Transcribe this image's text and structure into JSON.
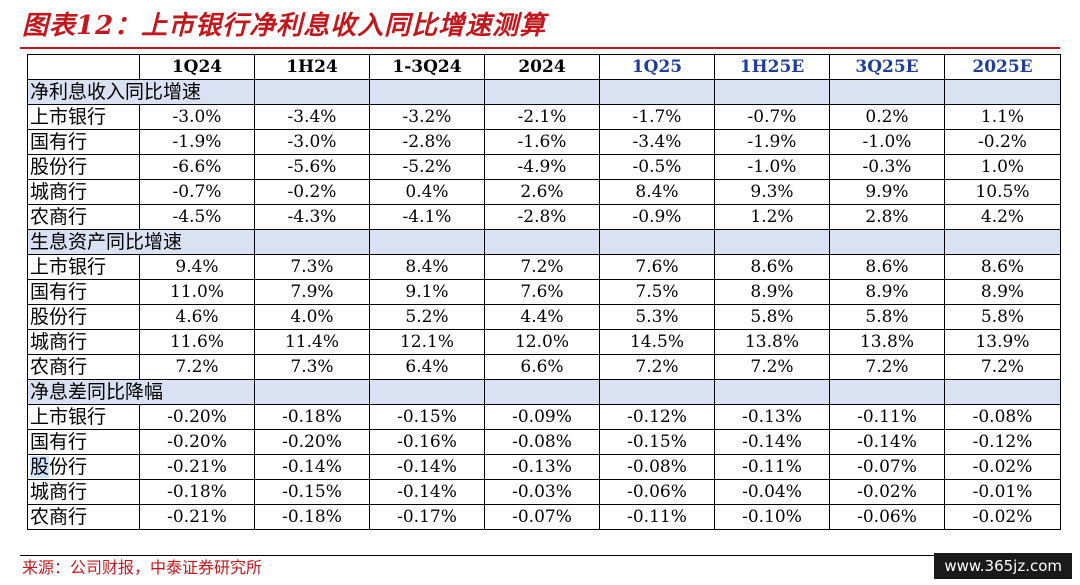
{
  "title": "图表12：上市银行净利息收入同比增速测算",
  "columns": [
    "",
    "1Q24",
    "1H24",
    "1-3Q24",
    "2024",
    "1Q25",
    "1H25E",
    "3Q25E",
    "2025E"
  ],
  "sections": [
    {
      "label": "净利息收入同比增速",
      "rows": [
        {
          "name": "上市银行",
          "values": [
            "-3.0%",
            "-3.4%",
            "-3.2%",
            "-2.1%",
            "-1.7%",
            "-0.7%",
            "0.2%",
            "1.1%"
          ]
        },
        {
          "name": "国有行",
          "values": [
            "-1.9%",
            "-3.0%",
            "-2.8%",
            "-1.6%",
            "-3.4%",
            "-1.9%",
            "-1.0%",
            "-0.2%"
          ]
        },
        {
          "name": "股份行",
          "values": [
            "-6.6%",
            "-5.6%",
            "-5.2%",
            "-4.9%",
            "-0.5%",
            "-1.0%",
            "-0.3%",
            "1.0%"
          ]
        },
        {
          "name": "城商行",
          "values": [
            "-0.7%",
            "-0.2%",
            "0.4%",
            "2.6%",
            "8.4%",
            "9.3%",
            "9.9%",
            "10.5%"
          ]
        },
        {
          "name": "农商行",
          "values": [
            "-4.5%",
            "-4.3%",
            "-4.1%",
            "-2.8%",
            "-0.9%",
            "1.2%",
            "2.8%",
            "4.2%"
          ]
        }
      ]
    },
    {
      "label": "生息资产同比增速",
      "rows": [
        {
          "name": "上市银行",
          "values": [
            "9.4%",
            "7.3%",
            "8.4%",
            "7.2%",
            "7.6%",
            "8.6%",
            "8.6%",
            "8.6%"
          ]
        },
        {
          "name": "国有行",
          "values": [
            "11.0%",
            "7.9%",
            "9.1%",
            "7.6%",
            "7.5%",
            "8.9%",
            "8.9%",
            "8.9%"
          ]
        },
        {
          "name": "股份行",
          "values": [
            "4.6%",
            "4.0%",
            "5.2%",
            "4.4%",
            "5.3%",
            "5.8%",
            "5.8%",
            "5.8%"
          ]
        },
        {
          "name": "城商行",
          "values": [
            "11.6%",
            "11.4%",
            "12.1%",
            "12.0%",
            "14.5%",
            "13.8%",
            "13.8%",
            "13.9%"
          ]
        },
        {
          "name": "农商行",
          "values": [
            "7.2%",
            "7.3%",
            "6.4%",
            "6.6%",
            "7.2%",
            "7.2%",
            "7.2%",
            "7.2%"
          ]
        }
      ]
    },
    {
      "label": "净息差同比降幅",
      "rows": [
        {
          "name": "上市银行",
          "values": [
            "-0.20%",
            "-0.18%",
            "-0.15%",
            "-0.09%",
            "-0.12%",
            "-0.13%",
            "-0.11%",
            "-0.08%"
          ]
        },
        {
          "name": "国有行",
          "values": [
            "-0.20%",
            "-0.20%",
            "-0.16%",
            "-0.08%",
            "-0.15%",
            "-0.14%",
            "-0.14%",
            "-0.12%"
          ]
        },
        {
          "name": "股份行",
          "values": [
            "-0.21%",
            "-0.14%",
            "-0.14%",
            "-0.13%",
            "-0.08%",
            "-0.11%",
            "-0.07%",
            "-0.02%"
          ]
        },
        {
          "name": "城商行",
          "values": [
            "-0.18%",
            "-0.15%",
            "-0.14%",
            "-0.03%",
            "-0.06%",
            "-0.04%",
            "-0.02%",
            "-0.01%"
          ]
        },
        {
          "name": "农商行",
          "values": [
            "-0.21%",
            "-0.18%",
            "-0.17%",
            "-0.07%",
            "-0.11%",
            "-0.10%",
            "-0.06%",
            "-0.02%"
          ]
        }
      ]
    }
  ],
  "source": "来源：公司财报，中泰证券研究所",
  "watermark": "www.365jz.com",
  "colors": {
    "title_red": "#c0181d",
    "estimate_blue": "#1f3e9a",
    "section_fill": "#d9e1f2"
  }
}
